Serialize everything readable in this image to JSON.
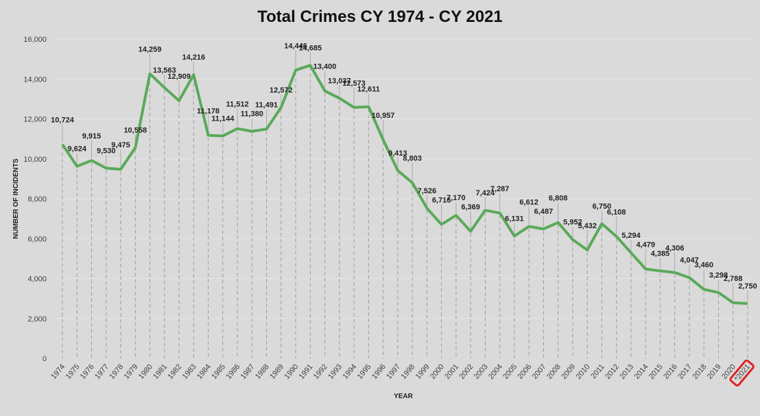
{
  "chart_data": {
    "type": "line",
    "title": "Total Crimes CY 1974 - CY 2021",
    "xlabel": "YEAR",
    "ylabel": "NUMBER OF INCIDENTS",
    "ylim": [
      0,
      16000
    ],
    "yticks": [
      "0",
      "2,000",
      "4,000",
      "6,000",
      "8,000",
      "10,000",
      "12,000",
      "14,000",
      "16,000"
    ],
    "grid": true,
    "categories": [
      "1974",
      "1975",
      "1976",
      "1977",
      "1978",
      "1979",
      "1980",
      "1981",
      "1982",
      "1983",
      "1984",
      "1985",
      "1986",
      "1987",
      "1988",
      "1989",
      "1990",
      "1991",
      "1992",
      "1993",
      "1994",
      "1995",
      "1996",
      "1997",
      "1998",
      "1999",
      "2000",
      "2001",
      "2002",
      "2003",
      "2004",
      "2005",
      "2006",
      "2007",
      "2008",
      "2009",
      "2010",
      "2011",
      "2012",
      "2013",
      "2014",
      "2015",
      "2016",
      "2017",
      "2018",
      "2019",
      "2020",
      "*2021"
    ],
    "values": [
      10724,
      9624,
      9915,
      9530,
      9475,
      10558,
      14259,
      13563,
      12909,
      14216,
      11178,
      11144,
      11512,
      11380,
      11491,
      12572,
      14446,
      14685,
      13400,
      13037,
      12573,
      12611,
      10957,
      9413,
      8803,
      7526,
      6716,
      7170,
      6369,
      7424,
      7287,
      6131,
      6612,
      6487,
      6808,
      5952,
      5432,
      6750,
      6108,
      5294,
      4479,
      4385,
      4306,
      4047,
      3460,
      3298,
      2788,
      2750
    ],
    "data_labels": [
      "10,724",
      "9,624",
      "9,915",
      "9,530",
      "9,475",
      "10,558",
      "14,259",
      "13,563",
      "12,909",
      "14,216",
      "11,178",
      "11,144",
      "11,512",
      "11,380",
      "11,491",
      "12,572",
      "14,446",
      "14,685",
      "13,400",
      "13,037",
      "12,573",
      "12,611",
      "10,957",
      "9,413",
      "8,803",
      "7,526",
      "6,716",
      "7,170",
      "6,369",
      "7,424",
      "7,287",
      "6,131",
      "6,612",
      "6,487",
      "6,808",
      "5,952",
      "5,432",
      "6,750",
      "6,108",
      "5,294",
      "4,479",
      "4,385",
      "4,306",
      "4,047",
      "3,460",
      "3,298",
      "2,788",
      "2,750"
    ],
    "highlighted_category": "*2021",
    "colors": {
      "line": "#5aa95a",
      "highlight": "#e02020",
      "background": "#dadada"
    }
  }
}
